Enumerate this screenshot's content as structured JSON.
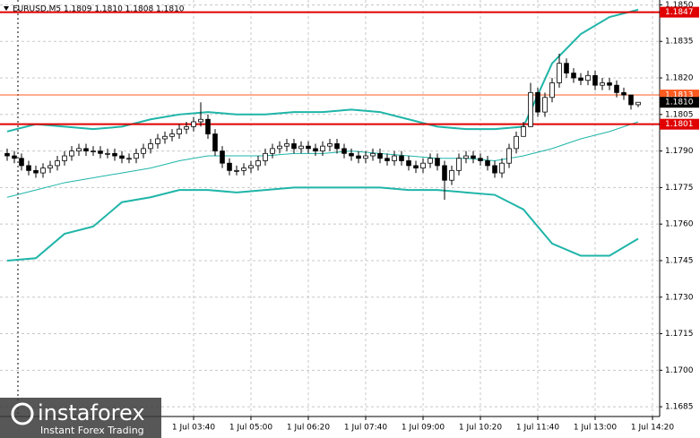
{
  "chart_data": {
    "type": "candlestick",
    "title": "EURUSD,M5  1.1809 1.1810 1.1808 1.1810",
    "watermark": {
      "brand": "instaforex",
      "tagline": "Instant Forex Trading"
    },
    "xlim": [
      -1,
      91
    ],
    "ylim": [
      1.1681,
      1.1852
    ],
    "yticks": [
      {
        "value": 1.185,
        "label": "1.1850"
      },
      1.1835,
      {
        "value": 1.182,
        "label": "1.1820"
      },
      1.1805,
      {
        "value": 1.179,
        "label": "1.1790"
      },
      1.1775,
      {
        "value": 1.176,
        "label": "1.1760"
      },
      1.1745,
      {
        "value": 1.173,
        "label": "1.1730"
      },
      1.1715,
      {
        "value": 1.17,
        "label": "1.1700"
      },
      1.1685
    ],
    "xticks": [
      {
        "value": 26,
        "label": "1 Jul 03:40"
      },
      {
        "value": 34,
        "label": "1 Jul 05:00"
      },
      {
        "value": 42,
        "label": "1 Jul 06:20"
      },
      {
        "value": 50,
        "label": "1 Jul 07:40"
      },
      {
        "value": 58,
        "label": "1 Jul 09:00"
      },
      {
        "value": 66,
        "label": "1 Jul 10:20"
      },
      {
        "value": 74,
        "label": "1 Jul 11:40"
      },
      {
        "value": 82,
        "label": "1 Jul 13:00"
      },
      {
        "value": 90,
        "label": "1 Jul 14:20"
      }
    ],
    "grid": true,
    "candle_color": "#000000",
    "open": [
      1.1789,
      1.1788,
      1.1787,
      1.1784,
      1.1782,
      1.1781,
      1.1783,
      1.1784,
      1.1786,
      1.1788,
      1.179,
      1.1791,
      1.179,
      1.179,
      1.1789,
      1.1789,
      1.1788,
      1.1787,
      1.1787,
      1.1789,
      1.1791,
      1.1793,
      1.1795,
      1.1796,
      1.1797,
      1.1799,
      1.18,
      1.1802,
      1.1803,
      1.1797,
      1.179,
      1.1785,
      1.1782,
      1.1782,
      1.1783,
      1.1784,
      1.1786,
      1.1789,
      1.1791,
      1.1792,
      1.1793,
      1.1791,
      1.1792,
      1.1791,
      1.179,
      1.1792,
      1.1793,
      1.1791,
      1.1789,
      1.1788,
      1.1787,
      1.1788,
      1.1789,
      1.1787,
      1.1786,
      1.1788,
      1.1786,
      1.1784,
      1.1783,
      1.1785,
      1.1787,
      1.1784,
      1.1778,
      1.1782,
      1.1787,
      1.1788,
      1.1787,
      1.1786,
      1.1784,
      1.1781,
      1.1785,
      1.1791,
      1.1796,
      1.18,
      1.1814,
      1.1806,
      1.1812,
      1.1818,
      1.1826,
      1.1822,
      1.182,
      1.1819,
      1.1821,
      1.1817,
      1.1818,
      1.1817,
      1.1814,
      1.1813,
      1.1809
    ],
    "high": [
      1.1791,
      1.179,
      1.1789,
      1.1786,
      1.1784,
      1.1785,
      1.1786,
      1.1788,
      1.179,
      1.1792,
      1.1793,
      1.1793,
      1.1792,
      1.1792,
      1.1791,
      1.1791,
      1.179,
      1.1789,
      1.1791,
      1.1793,
      1.1795,
      1.1797,
      1.1798,
      1.1799,
      1.1801,
      1.1802,
      1.1804,
      1.181,
      1.1805,
      1.1799,
      1.1792,
      1.1787,
      1.1784,
      1.1785,
      1.1786,
      1.1788,
      1.1791,
      1.1793,
      1.1794,
      1.1795,
      1.1795,
      1.1794,
      1.1794,
      1.1793,
      1.1794,
      1.1795,
      1.1795,
      1.1793,
      1.1791,
      1.179,
      1.179,
      1.1791,
      1.1791,
      1.1789,
      1.179,
      1.179,
      1.1788,
      1.1786,
      1.1787,
      1.1789,
      1.1789,
      1.1786,
      1.1784,
      1.1789,
      1.179,
      1.179,
      1.1789,
      1.1788,
      1.1786,
      1.1787,
      1.1793,
      1.1798,
      1.1802,
      1.1818,
      1.1816,
      1.1814,
      1.182,
      1.183,
      1.1828,
      1.1824,
      1.1822,
      1.1823,
      1.1823,
      1.182,
      1.182,
      1.1819,
      1.1816,
      1.1813,
      1.181
    ],
    "low": [
      1.1786,
      1.1785,
      1.1782,
      1.178,
      1.1779,
      1.1779,
      1.1781,
      1.1782,
      1.1784,
      1.1786,
      1.1788,
      1.1788,
      1.1788,
      1.1787,
      1.1787,
      1.1786,
      1.1785,
      1.1785,
      1.1785,
      1.1787,
      1.1789,
      1.1791,
      1.1793,
      1.1794,
      1.1795,
      1.1797,
      1.1798,
      1.18,
      1.1795,
      1.1788,
      1.1783,
      1.178,
      1.178,
      1.178,
      1.1781,
      1.1782,
      1.1784,
      1.1787,
      1.1789,
      1.179,
      1.1789,
      1.1789,
      1.1789,
      1.1788,
      1.1788,
      1.179,
      1.1789,
      1.1787,
      1.1786,
      1.1785,
      1.1785,
      1.1786,
      1.1785,
      1.1784,
      1.1784,
      1.1784,
      1.1782,
      1.1781,
      1.1781,
      1.1783,
      1.1782,
      1.177,
      1.1776,
      1.178,
      1.1785,
      1.1785,
      1.1784,
      1.1782,
      1.1779,
      1.1779,
      1.1783,
      1.1789,
      1.1796,
      1.18,
      1.1804,
      1.1804,
      1.181,
      1.1816,
      1.182,
      1.1818,
      1.1817,
      1.1817,
      1.1815,
      1.1815,
      1.1815,
      1.1812,
      1.1811,
      1.1807,
      1.1808
    ],
    "close": [
      1.1788,
      1.1787,
      1.1784,
      1.1782,
      1.1781,
      1.1783,
      1.1784,
      1.1786,
      1.1788,
      1.179,
      1.1791,
      1.179,
      1.179,
      1.1789,
      1.1789,
      1.1788,
      1.1787,
      1.1787,
      1.1789,
      1.1791,
      1.1793,
      1.1795,
      1.1796,
      1.1797,
      1.1799,
      1.18,
      1.1802,
      1.1803,
      1.1797,
      1.179,
      1.1785,
      1.1782,
      1.1782,
      1.1783,
      1.1784,
      1.1786,
      1.1789,
      1.1791,
      1.1792,
      1.1793,
      1.1791,
      1.1792,
      1.1791,
      1.179,
      1.1792,
      1.1793,
      1.1791,
      1.1789,
      1.1788,
      1.1787,
      1.1788,
      1.1789,
      1.1787,
      1.1786,
      1.1788,
      1.1786,
      1.1784,
      1.1783,
      1.1785,
      1.1787,
      1.1784,
      1.1778,
      1.1782,
      1.1787,
      1.1788,
      1.1787,
      1.1786,
      1.1784,
      1.1781,
      1.1785,
      1.1791,
      1.1796,
      1.18,
      1.1814,
      1.1806,
      1.1812,
      1.1818,
      1.1826,
      1.1822,
      1.182,
      1.1819,
      1.1821,
      1.1817,
      1.1818,
      1.1817,
      1.1814,
      1.1813,
      1.1809,
      1.181
    ],
    "bands": {
      "color": "#1fb5a8",
      "x": [
        0,
        4,
        8,
        12,
        16,
        20,
        24,
        28,
        32,
        36,
        40,
        44,
        48,
        52,
        56,
        60,
        64,
        68,
        72,
        76,
        80,
        84,
        88
      ],
      "series": [
        {
          "values": [
            1.1798,
            1.1801,
            1.18,
            1.1799,
            1.18,
            1.1803,
            1.1805,
            1.1806,
            1.1805,
            1.1805,
            1.1806,
            1.1806,
            1.1807,
            1.1806,
            1.1803,
            1.18,
            1.1799,
            1.1799,
            1.18,
            1.1826,
            1.1838,
            1.1845,
            1.1848
          ],
          "width": 2
        },
        {
          "values": [
            1.1771,
            1.1774,
            1.1777,
            1.1779,
            1.1781,
            1.1783,
            1.1786,
            1.1788,
            1.1788,
            1.1788,
            1.1789,
            1.1789,
            1.179,
            1.1789,
            1.1788,
            1.1787,
            1.1787,
            1.1786,
            1.1788,
            1.1791,
            1.1795,
            1.1798,
            1.1802
          ],
          "width": 1
        },
        {
          "values": [
            1.1745,
            1.1746,
            1.1756,
            1.1759,
            1.1769,
            1.1771,
            1.1774,
            1.1774,
            1.1773,
            1.1774,
            1.1775,
            1.1775,
            1.1775,
            1.1775,
            1.1774,
            1.1774,
            1.1773,
            1.1772,
            1.1766,
            1.1752,
            1.1747,
            1.1747,
            1.1754
          ],
          "width": 2
        }
      ]
    },
    "levels": [
      {
        "value": 1.1847,
        "color": "#e00000",
        "line": true
      },
      {
        "value": 1.1813,
        "color": "#ff5a1f",
        "line": true
      },
      {
        "value": {
          "value": 1.181,
          "label": "1.1810"
        },
        "color": "#000000",
        "line": false
      },
      {
        "value": 1.1801,
        "color": "#e00000",
        "line": true
      }
    ]
  }
}
